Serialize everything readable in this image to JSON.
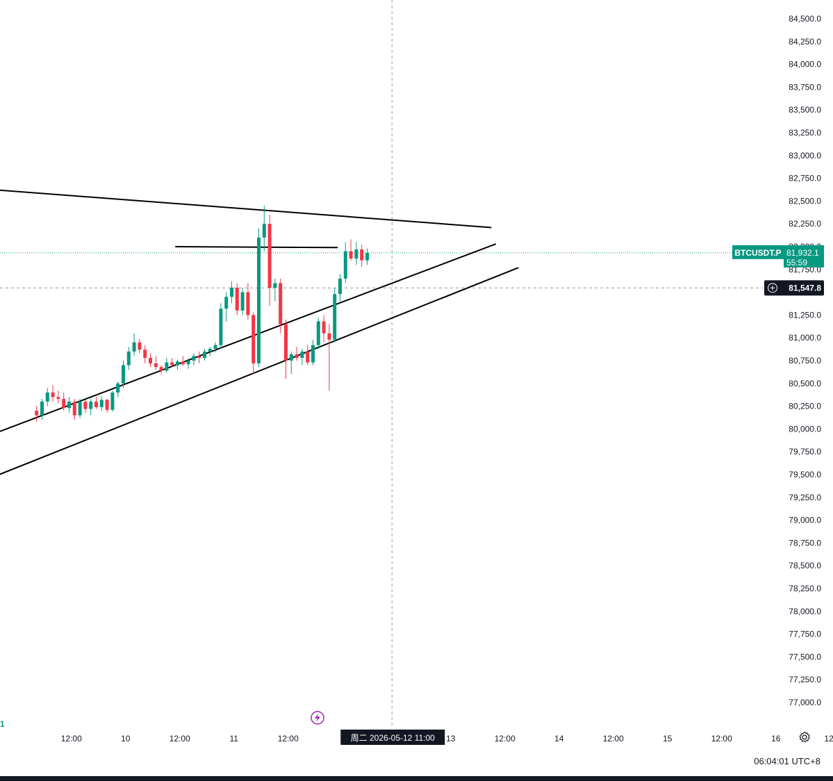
{
  "chart_data": {
    "type": "candlestick",
    "symbol": "BTCUSDT.P",
    "last_price": "81,932.1",
    "countdown": "55:59",
    "crosshair_price": "81,547.8",
    "crosshair_time_label": "周二  2026-05-12   11:00",
    "y_ticks": [
      "84,500.0",
      "84,250.0",
      "84,000.0",
      "83,750.0",
      "83,500.0",
      "83,250.0",
      "83,000.0",
      "82,750.0",
      "82,500.0",
      "82,250.0",
      "82,000.0",
      "81,750.0",
      "81,250.0",
      "81,000.0",
      "80,750.0",
      "80,500.0",
      "80,250.0",
      "80,000.0",
      "79,750.0",
      "79,500.0",
      "79,250.0",
      "79,000.0",
      "78,750.0",
      "78,500.0",
      "78,250.0",
      "78,000.0",
      "77,750.0",
      "77,500.0",
      "77,250.0",
      "77,000.0"
    ],
    "x_ticks": [
      {
        "label": "12:00",
        "t": 12
      },
      {
        "label": "10",
        "t": 24
      },
      {
        "label": "12:00",
        "t": 36
      },
      {
        "label": "11",
        "t": 48
      },
      {
        "label": "12:00",
        "t": 60
      },
      {
        "label": "13",
        "t": 96
      },
      {
        "label": "12:00",
        "t": 108
      },
      {
        "label": "14",
        "t": 120
      },
      {
        "label": "12:00",
        "t": 132
      },
      {
        "label": "15",
        "t": 144
      },
      {
        "label": "12:00",
        "t": 156
      },
      {
        "label": "16",
        "t": 168
      },
      {
        "label": "12:",
        "t": 180
      }
    ],
    "first_tick_fragment": "1",
    "y_range": [
      76800,
      84600
    ],
    "x_range_hours": [
      -4.0,
      181.5
    ],
    "crosshair_t": 83,
    "candles": [
      [
        80200,
        80250,
        80080,
        80150
      ],
      [
        80150,
        80330,
        80100,
        80300
      ],
      [
        80300,
        80450,
        80250,
        80400
      ],
      [
        80400,
        80480,
        80300,
        80350
      ],
      [
        80350,
        80420,
        80280,
        80330
      ],
      [
        80330,
        80400,
        80200,
        80230
      ],
      [
        80230,
        80350,
        80180,
        80300
      ],
      [
        80300,
        80330,
        80100,
        80150
      ],
      [
        80150,
        80330,
        80120,
        80300
      ],
      [
        80300,
        80320,
        80180,
        80220
      ],
      [
        80220,
        80330,
        80150,
        80300
      ],
      [
        80300,
        80350,
        80220,
        80240
      ],
      [
        80240,
        80360,
        80200,
        80320
      ],
      [
        80320,
        80330,
        80180,
        80210
      ],
      [
        80210,
        80420,
        80190,
        80400
      ],
      [
        80400,
        80520,
        80350,
        80500
      ],
      [
        80500,
        80750,
        80450,
        80700
      ],
      [
        80700,
        80900,
        80650,
        80850
      ],
      [
        80850,
        81050,
        80800,
        80950
      ],
      [
        80950,
        80990,
        80830,
        80870
      ],
      [
        80870,
        80920,
        80720,
        80780
      ],
      [
        80780,
        80830,
        80680,
        80720
      ],
      [
        80720,
        80800,
        80650,
        80680
      ],
      [
        80680,
        80700,
        80600,
        80640
      ],
      [
        80640,
        80780,
        80620,
        80730
      ],
      [
        80730,
        80780,
        80680,
        80700
      ],
      [
        80700,
        80760,
        80650,
        80740
      ],
      [
        80740,
        80800,
        80690,
        80710
      ],
      [
        80710,
        80780,
        80660,
        80750
      ],
      [
        80750,
        80830,
        80700,
        80800
      ],
      [
        80800,
        80850,
        80720,
        80780
      ],
      [
        80780,
        80880,
        80750,
        80850
      ],
      [
        80850,
        80900,
        80800,
        80880
      ],
      [
        80880,
        80950,
        80840,
        80920
      ],
      [
        80920,
        81380,
        80880,
        81320
      ],
      [
        81320,
        81500,
        81180,
        81450
      ],
      [
        81450,
        81620,
        81380,
        81550
      ],
      [
        81550,
        81600,
        81250,
        81300
      ],
      [
        81300,
        81550,
        81250,
        81500
      ],
      [
        81500,
        81600,
        81200,
        81250
      ],
      [
        81250,
        81280,
        80600,
        80720
      ],
      [
        80720,
        82200,
        80680,
        82100
      ],
      [
        82100,
        82450,
        81950,
        82250
      ],
      [
        82250,
        82350,
        81350,
        81550
      ],
      [
        81550,
        81650,
        81400,
        81600
      ],
      [
        81600,
        81650,
        81050,
        81150
      ],
      [
        81150,
        81200,
        80550,
        80750
      ],
      [
        80750,
        80850,
        80600,
        80820
      ],
      [
        80820,
        80900,
        80750,
        80780
      ],
      [
        80780,
        80880,
        80700,
        80850
      ],
      [
        80850,
        80920,
        80700,
        80730
      ],
      [
        80730,
        80980,
        80700,
        80920
      ],
      [
        80920,
        81220,
        80880,
        81180
      ],
      [
        81180,
        81250,
        80950,
        81050
      ],
      [
        81050,
        81150,
        80420,
        80980
      ],
      [
        80980,
        81550,
        80950,
        81480
      ],
      [
        81480,
        81700,
        81400,
        81650
      ],
      [
        81650,
        82050,
        81600,
        81950
      ],
      [
        81950,
        82080,
        81850,
        81870
      ],
      [
        81870,
        82050,
        81800,
        81970
      ],
      [
        81970,
        82020,
        81780,
        81850
      ],
      [
        81850,
        81980,
        81800,
        81932
      ]
    ],
    "lines": [
      {
        "name": "upper-trendline",
        "p1": [
          -4.0,
          82620
        ],
        "p2": [
          105,
          82210
        ]
      },
      {
        "name": "resistance-line",
        "p1": [
          35,
          82000
        ],
        "p2": [
          71,
          81990
        ]
      },
      {
        "name": "middle-trendline",
        "p1": [
          -4.0,
          79970
        ],
        "p2": [
          106,
          82030
        ]
      },
      {
        "name": "lower-trendline",
        "p1": [
          -4.0,
          79500
        ],
        "p2": [
          111,
          81770
        ]
      }
    ],
    "colors": {
      "up": "#089981",
      "down": "#f23645",
      "line": "#000000",
      "grid_dash": "#9598a1",
      "badge": "#089981",
      "crosshair_badge": "#131722",
      "text": "#131722",
      "lightning": "#9c27b0"
    },
    "grid": false
  },
  "status": {
    "clock": "06:04:01 UTC+8"
  }
}
